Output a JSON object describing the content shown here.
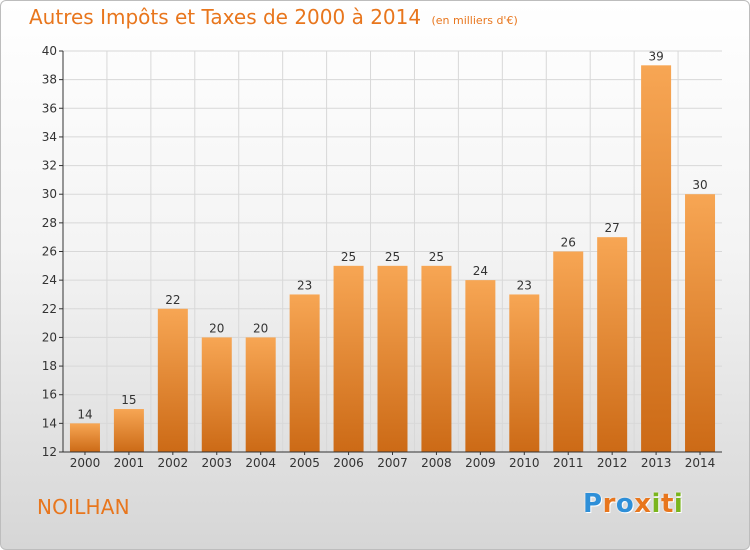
{
  "title": "Autres Impôts et Taxes de 2000 à 2014",
  "subtitle": "(en milliers d'€)",
  "location": "NOILHAN",
  "logo": {
    "text": "Proxiti",
    "letters": [
      {
        "char": "P",
        "color": "#2e8fd8"
      },
      {
        "char": "r",
        "color": "#e8761d"
      },
      {
        "char": "o",
        "color": "#2e8fd8"
      },
      {
        "char": "x",
        "color": "#e8761d"
      },
      {
        "char": "i",
        "color": "#7ab51d"
      },
      {
        "char": "t",
        "color": "#e8761d"
      },
      {
        "char": "i",
        "color": "#7ab51d"
      }
    ]
  },
  "colors": {
    "accent": "#e8761d",
    "bar_top": "#f7a654",
    "bar_bottom": "#cc6a16",
    "grid": "#d8d8d8",
    "axis": "#333333"
  },
  "chart_data": {
    "type": "bar",
    "title": "Autres Impôts et Taxes de 2000 à 2014",
    "subtitle": "(en milliers d'€)",
    "xlabel": "",
    "ylabel": "",
    "categories": [
      "2000",
      "2001",
      "2002",
      "2003",
      "2004",
      "2005",
      "2006",
      "2007",
      "2008",
      "2009",
      "2010",
      "2011",
      "2012",
      "2013",
      "2014"
    ],
    "values": [
      14,
      15,
      22,
      20,
      20,
      23,
      25,
      25,
      25,
      24,
      23,
      26,
      27,
      39,
      30
    ],
    "data_labels": [
      "14",
      "15",
      "22",
      "20",
      "20",
      "23",
      "25",
      "25",
      "25",
      "24",
      "23",
      "26",
      "27",
      "39",
      "30"
    ],
    "ylim": [
      12,
      40
    ],
    "yticks": [
      12,
      14,
      16,
      18,
      20,
      22,
      24,
      26,
      28,
      30,
      32,
      34,
      36,
      38,
      40
    ],
    "ytick_labels": [
      "12",
      "14",
      "16",
      "18",
      "20",
      "22",
      "24",
      "26",
      "28",
      "30",
      "32",
      "34",
      "36",
      "38",
      "40"
    ],
    "grid": true,
    "legend": "none"
  }
}
